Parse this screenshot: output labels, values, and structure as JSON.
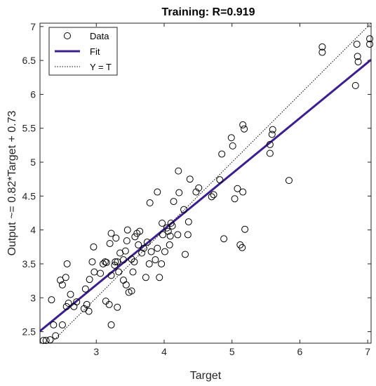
{
  "chart_data": {
    "type": "scatter",
    "title": "Training: R=0.919",
    "xlabel": "Target",
    "ylabel": "Output ~= 0.82*Target + 0.73",
    "xlim": [
      2.17,
      7.05
    ],
    "ylim": [
      2.33,
      7.05
    ],
    "xticks": [
      3,
      4,
      5,
      6,
      7
    ],
    "yticks": [
      2.5,
      3,
      3.5,
      4,
      4.5,
      5,
      5.5,
      6,
      6.5,
      7
    ],
    "grid": false,
    "legend": {
      "placement": "top-left",
      "entries": [
        {
          "label": "Data",
          "style": "open-circle"
        },
        {
          "label": "Fit",
          "style": "solid-line"
        },
        {
          "label": "Y = T",
          "style": "dotted-line"
        }
      ]
    },
    "colors": {
      "data": "#000000",
      "fit": "#3d1f8c",
      "identity": "#000000"
    },
    "fit": {
      "slope": 0.82,
      "intercept": 0.73
    },
    "identity": {
      "slope": 1,
      "intercept": 0
    },
    "points": [
      [
        2.22,
        2.37
      ],
      [
        2.26,
        2.37
      ],
      [
        2.32,
        2.38
      ],
      [
        2.4,
        2.44
      ],
      [
        2.37,
        2.6
      ],
      [
        2.34,
        2.97
      ],
      [
        2.5,
        2.6
      ],
      [
        2.56,
        2.87
      ],
      [
        2.59,
        2.92
      ],
      [
        2.62,
        3.05
      ],
      [
        2.47,
        3.26
      ],
      [
        2.5,
        3.19
      ],
      [
        2.55,
        3.3
      ],
      [
        2.57,
        3.5
      ],
      [
        2.67,
        2.87
      ],
      [
        2.71,
        2.94
      ],
      [
        2.82,
        2.84
      ],
      [
        2.86,
        2.9
      ],
      [
        2.89,
        2.8
      ],
      [
        2.84,
        3.13
      ],
      [
        2.9,
        3.27
      ],
      [
        2.97,
        3.38
      ],
      [
        2.94,
        3.53
      ],
      [
        2.96,
        3.75
      ],
      [
        3.06,
        3.36
      ],
      [
        3.1,
        3.5
      ],
      [
        3.13,
        3.53
      ],
      [
        3.15,
        3.52
      ],
      [
        3.2,
        3.8
      ],
      [
        3.22,
        3.95
      ],
      [
        3.14,
        2.95
      ],
      [
        3.19,
        2.9
      ],
      [
        3.31,
        2.86
      ],
      [
        3.22,
        2.6
      ],
      [
        3.22,
        3.33
      ],
      [
        3.27,
        3.48
      ],
      [
        3.28,
        3.53
      ],
      [
        3.31,
        3.53
      ],
      [
        3.33,
        3.38
      ],
      [
        3.29,
        3.88
      ],
      [
        3.35,
        3.66
      ],
      [
        3.4,
        3.56
      ],
      [
        3.43,
        3.69
      ],
      [
        3.45,
        3.84
      ],
      [
        3.46,
        4.0
      ],
      [
        3.4,
        3.26
      ],
      [
        3.44,
        3.19
      ],
      [
        3.48,
        3.08
      ],
      [
        3.52,
        3.1
      ],
      [
        3.52,
        3.57
      ],
      [
        3.54,
        3.38
      ],
      [
        3.56,
        3.53
      ],
      [
        3.57,
        3.9
      ],
      [
        3.6,
        3.95
      ],
      [
        3.64,
        3.98
      ],
      [
        3.62,
        3.78
      ],
      [
        3.67,
        3.66
      ],
      [
        3.7,
        3.73
      ],
      [
        3.73,
        3.3
      ],
      [
        3.78,
        3.5
      ],
      [
        3.79,
        4.4
      ],
      [
        3.75,
        3.82
      ],
      [
        3.81,
        3.68
      ],
      [
        3.87,
        3.56
      ],
      [
        3.9,
        3.73
      ],
      [
        3.9,
        4.56
      ],
      [
        3.93,
        3.3
      ],
      [
        3.96,
        3.5
      ],
      [
        3.97,
        4.1
      ],
      [
        3.98,
        3.93
      ],
      [
        4.01,
        3.68
      ],
      [
        4.04,
        4.03
      ],
      [
        4.06,
        3.98
      ],
      [
        4.08,
        3.78
      ],
      [
        4.09,
        3.91
      ],
      [
        4.1,
        4.1
      ],
      [
        4.12,
        4.06
      ],
      [
        4.14,
        4.42
      ],
      [
        4.2,
        3.93
      ],
      [
        4.22,
        4.55
      ],
      [
        4.21,
        4.87
      ],
      [
        4.29,
        4.3
      ],
      [
        4.31,
        3.64
      ],
      [
        4.35,
        3.93
      ],
      [
        4.36,
        4.12
      ],
      [
        4.38,
        4.75
      ],
      [
        4.47,
        4.56
      ],
      [
        4.51,
        4.62
      ],
      [
        4.7,
        4.49
      ],
      [
        4.73,
        4.52
      ],
      [
        4.82,
        4.74
      ],
      [
        4.85,
        5.12
      ],
      [
        4.88,
        3.87
      ],
      [
        4.99,
        5.36
      ],
      [
        5.01,
        5.24
      ],
      [
        5.04,
        4.46
      ],
      [
        5.08,
        4.61
      ],
      [
        5.12,
        3.78
      ],
      [
        5.15,
        3.74
      ],
      [
        5.16,
        4.56
      ],
      [
        5.18,
        5.49
      ],
      [
        5.16,
        5.55
      ],
      [
        5.19,
        4.01
      ],
      [
        5.56,
        5.13
      ],
      [
        5.56,
        5.26
      ],
      [
        5.59,
        5.41
      ],
      [
        5.6,
        5.48
      ],
      [
        5.84,
        4.73
      ],
      [
        6.33,
        6.62
      ],
      [
        6.33,
        6.7
      ],
      [
        6.82,
        6.13
      ],
      [
        6.85,
        6.56
      ],
      [
        6.86,
        6.48
      ],
      [
        6.84,
        6.74
      ],
      [
        7.03,
        6.74
      ],
      [
        7.03,
        6.82
      ]
    ]
  }
}
